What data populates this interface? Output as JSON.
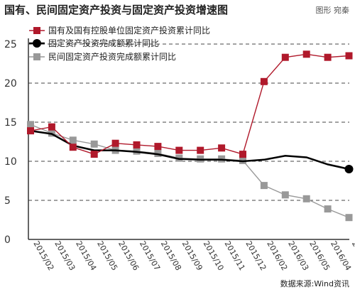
{
  "header": {
    "title": "国有、民间固定资产投资与固定资产投资增速图",
    "credit": "图形 宛秦"
  },
  "footer": {
    "source": "数据来源:Wind资讯"
  },
  "colors": {
    "state": "#b0192b",
    "total": "#000000",
    "private": "#999999",
    "axis": "#333333",
    "grid": "#444444"
  },
  "chart_data": {
    "type": "line",
    "title": "国有、民间固定资产投资与固定资产投资增速图",
    "xlabel": "",
    "ylabel": "",
    "ylim": [
      0,
      25
    ],
    "yticks": [
      0,
      5,
      10,
      15,
      20,
      25
    ],
    "grid": "horizontal dashed",
    "legend_position": "top-left",
    "categories": [
      "2015/02",
      "2015/03",
      "2015/04",
      "2015/05",
      "2015/06",
      "2015/07",
      "2015/08",
      "2015/09",
      "2015/10",
      "2015/11",
      "2015/12",
      "2016/02",
      "2016/03",
      "2016/05",
      "2016/04",
      "2016/06"
    ],
    "series": [
      {
        "name": "国有及国有控股单位固定资产投资累计同比",
        "marker": "square",
        "color_key": "state",
        "values": [
          13.9,
          14.4,
          11.8,
          10.9,
          12.3,
          12.1,
          11.9,
          11.4,
          11.4,
          11.7,
          10.9,
          20.2,
          23.3,
          23.7,
          23.3,
          23.5
        ]
      },
      {
        "name": "固定资产投资完成额累计同比",
        "marker": "circle",
        "color_key": "total",
        "values": [
          13.9,
          13.5,
          12.0,
          11.4,
          11.4,
          11.2,
          10.9,
          10.3,
          10.2,
          10.2,
          10.0,
          10.2,
          10.7,
          10.5,
          9.6,
          9.0
        ]
      },
      {
        "name": "民间固定资产投资完成额累计同比",
        "marker": "square",
        "color_key": "private",
        "values": [
          14.7,
          13.6,
          12.7,
          12.2,
          11.4,
          11.3,
          11.0,
          10.4,
          10.3,
          10.3,
          10.1,
          6.9,
          5.7,
          5.2,
          3.9,
          2.8
        ]
      }
    ]
  }
}
